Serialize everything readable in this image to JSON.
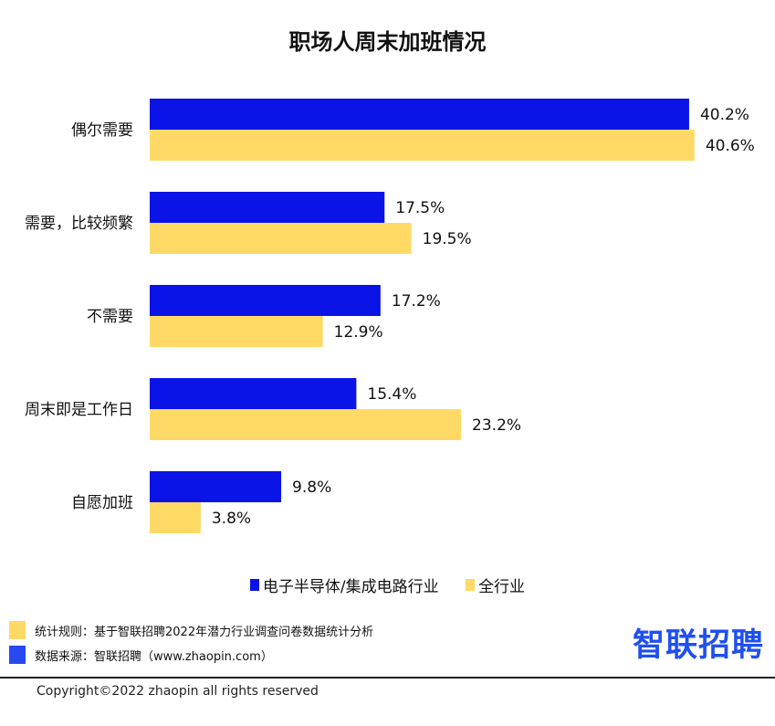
{
  "colors": {
    "series1": "#0a14e6",
    "series2": "#ffd966",
    "source_square": "#2649f0",
    "logo": "#1f4ff0"
  },
  "chart_data": {
    "type": "bar",
    "orientation": "horizontal",
    "title": "职场人周末加班情况",
    "categories": [
      "偶尔需要",
      "需要，比较频繁",
      "不需要",
      "周末即是工作日",
      "自愿加班"
    ],
    "series": [
      {
        "name": "电子半导体/集成电路行业",
        "values": [
          40.2,
          17.5,
          17.2,
          15.4,
          9.8
        ],
        "labels": [
          "40.2%",
          "17.5%",
          "17.2%",
          "15.4%",
          "9.8%"
        ]
      },
      {
        "name": "全行业",
        "values": [
          40.6,
          19.5,
          12.9,
          23.2,
          3.8
        ],
        "labels": [
          "40.6%",
          "19.5%",
          "12.9%",
          "23.2%",
          "3.8%"
        ]
      }
    ],
    "xlim": [
      0,
      45
    ],
    "grid": false,
    "legend": "bottom"
  },
  "footer": {
    "rule_note": "统计规则：基于智联招聘2022年潜力行业调查问卷数据统计分析",
    "source_note": "数据来源：智联招聘（www.zhaopin.com）",
    "logo": "智联招聘",
    "copyright": "Copyright©2022 zhaopin all rights reserved"
  }
}
